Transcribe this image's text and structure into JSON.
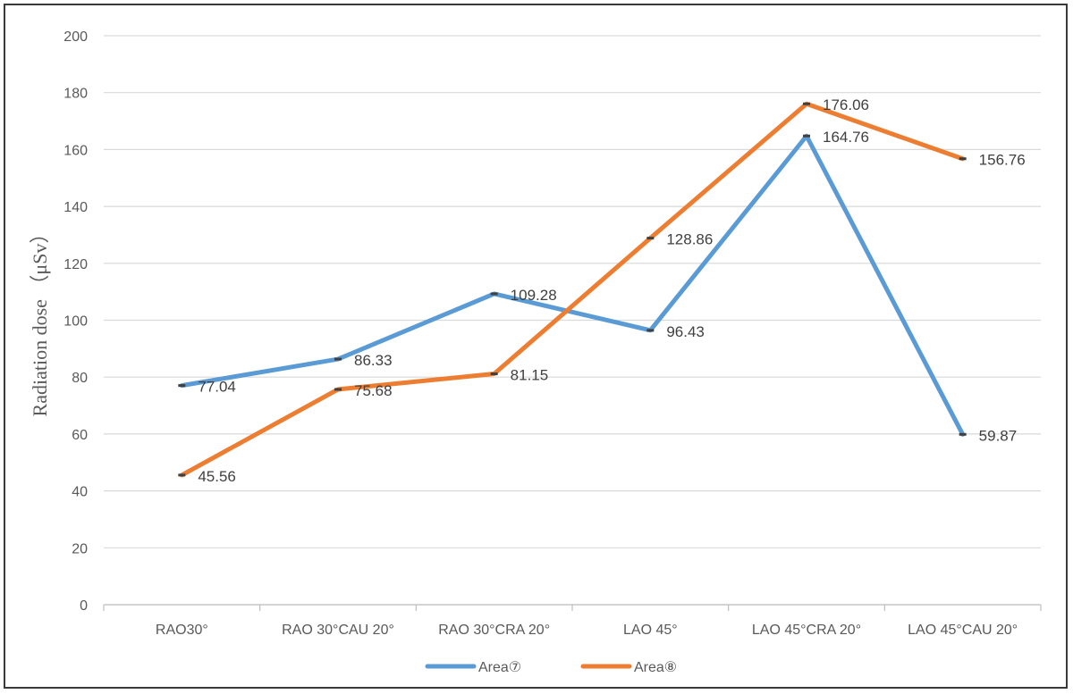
{
  "chart_data": {
    "type": "line",
    "categories": [
      "RAO30°",
      "RAO 30°CAU 20°",
      "RAO 30°CRA 20°",
      "LAO 45°",
      "LAO 45°CRA 20°",
      "LAO 45°CAU 20°"
    ],
    "series": [
      {
        "name": "Area⑦",
        "color": "#5b9bd5",
        "values": [
          77.04,
          86.33,
          109.28,
          96.43,
          164.76,
          59.87
        ]
      },
      {
        "name": "Area⑧",
        "color": "#ed7d31",
        "values": [
          45.56,
          75.68,
          81.15,
          128.86,
          176.06,
          156.76
        ]
      }
    ],
    "title": "",
    "xlabel": "",
    "ylabel": "Radiation dose （μSv）",
    "ylim": [
      0,
      200
    ],
    "yticks": [
      0,
      20,
      40,
      60,
      80,
      100,
      120,
      140,
      160,
      180,
      200
    ],
    "grid": true,
    "legend_position": "bottom"
  }
}
